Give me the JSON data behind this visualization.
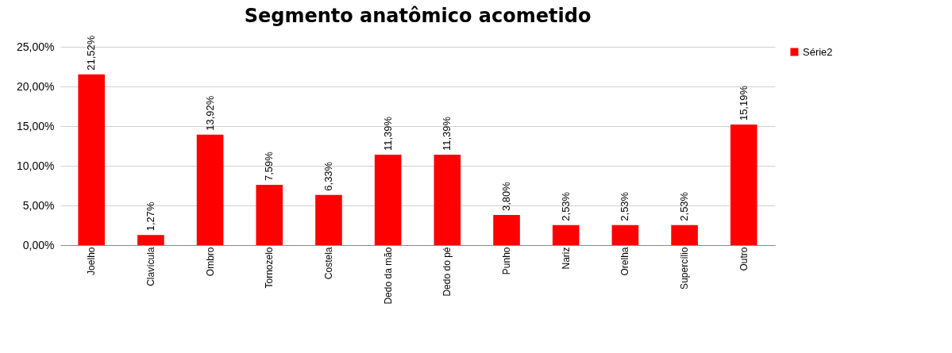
{
  "chart_data": {
    "type": "bar",
    "title": "Segmento anatômico acometido",
    "categories": [
      "Joelho",
      "Clavícula",
      "Ombro",
      "Tornozelo",
      "Costela",
      "Dedo da mão",
      "Dedo do pé",
      "Punho",
      "Nariz",
      "Orelha",
      "Supercílio",
      "Outro"
    ],
    "series": [
      {
        "name": "Série2",
        "color": "#ff0000",
        "values": [
          21.52,
          1.27,
          13.92,
          7.59,
          6.33,
          11.39,
          11.39,
          3.8,
          2.53,
          2.53,
          2.53,
          15.19
        ],
        "value_labels": [
          "21,52%",
          "1,27%",
          "13,92%",
          "7,59%",
          "6,33%",
          "11,39%",
          "11,39%",
          "3,80%",
          "2,53%",
          "2,53%",
          "2,53%",
          "15,19%"
        ]
      }
    ],
    "ylim": [
      0,
      25
    ],
    "yticks": [
      {
        "value": 0,
        "label": "0,00%"
      },
      {
        "value": 5,
        "label": "5,00%"
      },
      {
        "value": 10,
        "label": "10,00%"
      },
      {
        "value": 15,
        "label": "15,00%"
      },
      {
        "value": 20,
        "label": "20,00%"
      },
      {
        "value": 25,
        "label": "25,00%"
      }
    ],
    "grid": "y",
    "legend": "right"
  }
}
